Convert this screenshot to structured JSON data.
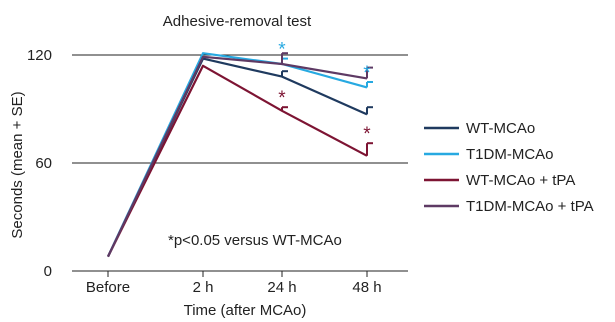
{
  "chart_data": {
    "type": "line",
    "title": "Adhesive-removal test",
    "xlabel": "Time (after MCAo)",
    "ylabel": "Seconds (mean + SE)",
    "categories": [
      "Before",
      "2 h",
      "24 h",
      "48 h"
    ],
    "yticks": [
      0,
      60,
      120
    ],
    "ylim": [
      0,
      120
    ],
    "gridlines": [
      60,
      120
    ],
    "series": [
      {
        "name": "WT-MCAo",
        "color": "#1f3a5f",
        "values": [
          8,
          118,
          108,
          87
        ],
        "se": [
          0,
          0,
          3,
          4
        ],
        "significant": [
          false,
          false,
          false,
          false
        ]
      },
      {
        "name": "T1DM-MCAo",
        "color": "#27a9e1",
        "values": [
          8,
          121,
          115,
          102
        ],
        "se": [
          0,
          0,
          3,
          3
        ],
        "significant": [
          false,
          false,
          true,
          true
        ]
      },
      {
        "name": "WT-MCAo + tPA",
        "color": "#7d1433",
        "values": [
          8,
          114,
          89,
          64
        ],
        "se": [
          0,
          0,
          2,
          7
        ],
        "significant": [
          false,
          false,
          true,
          true
        ]
      },
      {
        "name": "T1DM-MCAo + tPA",
        "color": "#5e3a64",
        "values": [
          8,
          119,
          115,
          107
        ],
        "se": [
          0,
          0,
          6,
          6
        ],
        "significant": [
          false,
          false,
          false,
          false
        ]
      }
    ],
    "annotation": "*p<0.05 versus WT-MCAo",
    "sig_symbol": "*",
    "legend_position": "right"
  }
}
